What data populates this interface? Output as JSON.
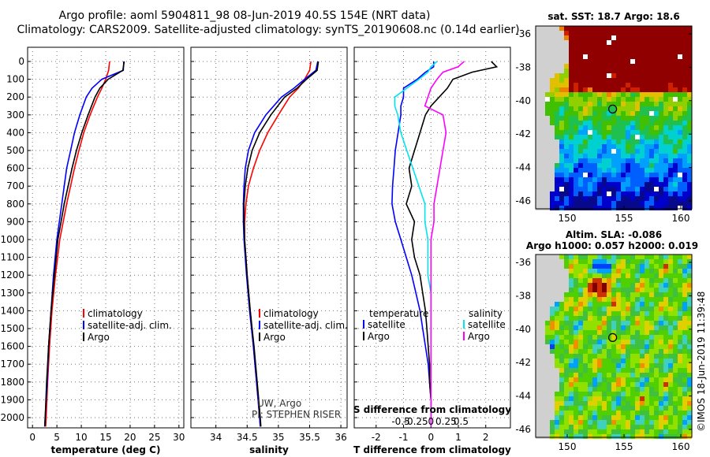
{
  "header": {
    "title_line1": "Argo profile: aoml 5904811_98 08-Jun-2019 40.5S 154E (NRT data)",
    "title_line2": "Climatology: CARS2009. Satellite-adjusted climatology: synTS_20190608.nc (0.14d earlier)"
  },
  "colors": {
    "climatology": "#ff0000",
    "satellite": "#0000ff",
    "argo": "#000000",
    "sat_salinity": "#00e5ee",
    "argo_salinity": "#ff00ff"
  },
  "depth_ticks": [
    "0",
    "100",
    "200",
    "300",
    "400",
    "500",
    "600",
    "700",
    "800",
    "900",
    "1000",
    "1100",
    "1200",
    "1300",
    "1400",
    "1500",
    "1600",
    "1700",
    "1800",
    "1900",
    "2000"
  ],
  "chart_data": [
    {
      "type": "line",
      "name": "temperature",
      "xlabel": "temperature (deg C)",
      "ylabel": "depth",
      "xlim": [
        -1,
        31
      ],
      "ylim": [
        2050,
        0
      ],
      "xticks": [
        "0",
        "5",
        "10",
        "15",
        "20",
        "25",
        "30"
      ],
      "y": [
        0,
        50,
        100,
        150,
        200,
        300,
        400,
        500,
        600,
        800,
        1000,
        1200,
        1400,
        1600,
        1800,
        2000,
        2050
      ],
      "series": [
        {
          "name": "climatology",
          "values": [
            15.8,
            15.6,
            15.0,
            14.2,
            13.3,
            11.8,
            10.5,
            9.5,
            8.6,
            7.0,
            5.6,
            4.7,
            4.0,
            3.5,
            3.1,
            2.8,
            2.7
          ]
        },
        {
          "name": "satellite-adj. clim.",
          "values": [
            18.7,
            18.6,
            14.2,
            12.2,
            11.0,
            9.7,
            8.6,
            7.8,
            7.0,
            6.0,
            5.0,
            4.3,
            3.8,
            3.3,
            3.0,
            2.6,
            2.5
          ]
        },
        {
          "name": "Argo",
          "values": [
            18.8,
            18.5,
            15.5,
            13.8,
            12.8,
            11.4,
            10.1,
            9.0,
            8.1,
            6.5,
            5.2,
            4.5,
            3.8,
            3.3,
            2.9,
            2.6,
            2.5
          ]
        }
      ],
      "legend": {
        "items": [
          "climatology",
          "satellite-adj. clim.",
          "Argo"
        ],
        "position": "lower-right"
      }
    },
    {
      "type": "line",
      "name": "salinity",
      "xlabel": "salinity",
      "xlim": [
        33.6,
        36.1
      ],
      "ylim": [
        2050,
        0
      ],
      "xticks": [
        "34",
        "34.5",
        "35",
        "35.5",
        "36"
      ],
      "y": [
        0,
        50,
        100,
        150,
        200,
        300,
        400,
        500,
        600,
        700,
        800,
        900,
        1000,
        1200,
        1400,
        1600,
        1800,
        2000,
        2050
      ],
      "series": [
        {
          "name": "climatology",
          "values": [
            35.52,
            35.5,
            35.42,
            35.32,
            35.18,
            35.0,
            34.83,
            34.7,
            34.6,
            34.52,
            34.48,
            34.46,
            34.46,
            34.5,
            34.55,
            34.6,
            34.65,
            34.7,
            34.71
          ]
        },
        {
          "name": "satellite-adj. clim.",
          "values": [
            35.63,
            35.6,
            35.42,
            35.25,
            35.05,
            34.8,
            34.62,
            34.52,
            34.47,
            34.45,
            34.44,
            34.44,
            34.45,
            34.49,
            34.54,
            34.6,
            34.65,
            34.7,
            34.71
          ]
        },
        {
          "name": "Argo",
          "values": [
            35.64,
            35.62,
            35.45,
            35.3,
            35.1,
            34.88,
            34.7,
            34.58,
            34.51,
            34.47,
            34.45,
            34.45,
            34.46,
            34.5,
            34.55,
            34.61,
            34.66,
            34.71,
            34.72
          ]
        }
      ],
      "legend": {
        "items": [
          "climatology",
          "satellite-adj. clim.",
          "Argo"
        ],
        "position": "lower-right"
      },
      "annotations": [
        "UW, Argo",
        "PI: STEPHEN RISER"
      ]
    },
    {
      "type": "line",
      "name": "difference",
      "xlabel": "T difference from climatology",
      "xlabel2": "S difference from climatology",
      "xlim": [
        -2.8,
        2.9
      ],
      "ylim": [
        2050,
        0
      ],
      "xticks": [
        "-2",
        "-1",
        "0",
        "1",
        "2"
      ],
      "xticks2": [
        "-0.5",
        "-0.25",
        "0",
        "0.25",
        "0.5"
      ],
      "y": [
        0,
        30,
        60,
        100,
        150,
        200,
        250,
        300,
        400,
        500,
        600,
        700,
        800,
        900,
        1000,
        1100,
        1200,
        1300,
        1400,
        1500,
        1600,
        1700,
        1800,
        1900,
        2000,
        2050
      ],
      "series": [
        {
          "name": "temperature satellite",
          "values": [
            0.1,
            0.1,
            -0.2,
            -0.5,
            -1.0,
            -1.0,
            -1.1,
            -1.1,
            -1.2,
            -1.3,
            -1.35,
            -1.4,
            -1.42,
            -1.3,
            -1.1,
            -0.9,
            -0.7,
            -0.55,
            -0.4,
            -0.3,
            -0.2,
            -0.1,
            -0.05,
            0.0,
            0.0,
            0.0
          ]
        },
        {
          "name": "temperature Argo",
          "values": [
            2.2,
            2.4,
            1.5,
            0.8,
            0.6,
            0.3,
            0.0,
            -0.2,
            -0.4,
            -0.6,
            -0.8,
            -0.7,
            -0.9,
            -0.6,
            -0.7,
            -0.6,
            -0.4,
            -0.3,
            -0.2,
            -0.15,
            -0.1,
            -0.05,
            -0.05,
            0.0,
            0.0,
            0.0
          ]
        },
        {
          "name": "salinity satellite",
          "values": [
            0.1,
            0.0,
            -0.05,
            -0.2,
            -0.4,
            -0.6,
            -0.6,
            -0.55,
            -0.5,
            -0.4,
            -0.3,
            -0.2,
            -0.1,
            -0.1,
            -0.05,
            -0.05,
            -0.05,
            0.0,
            0.0,
            0.0,
            0.0,
            0.0,
            0.0,
            0.0,
            0.0,
            0.0
          ]
        },
        {
          "name": "salinity Argo",
          "values": [
            0.55,
            0.45,
            0.2,
            0.1,
            0.0,
            -0.05,
            -0.1,
            0.2,
            0.25,
            0.2,
            0.15,
            0.1,
            0.05,
            0.05,
            0.0,
            0.0,
            0.0,
            0.0,
            0.0,
            0.0,
            0.0,
            0.0,
            0.0,
            0.0,
            0.0,
            0.0
          ]
        }
      ],
      "legend": {
        "temperature_title": "temperature",
        "salinity_title": "salinity",
        "temperature_items": [
          "satellite",
          "Argo"
        ],
        "salinity_items": [
          "satellite",
          "Argo"
        ],
        "position": "lower"
      }
    },
    {
      "type": "heatmap",
      "name": "sst-map",
      "title": "sat. SST: 18.7 Argo: 18.6",
      "xticks": [
        "150",
        "155",
        "160"
      ],
      "yticks": [
        "-36",
        "-38",
        "-40",
        "-42",
        "-44",
        "-46"
      ],
      "marker": {
        "lon": 154,
        "lat": -40.5
      }
    },
    {
      "type": "heatmap",
      "name": "sla-map",
      "title_line1": "Altim. SLA: -0.086",
      "title_line2": "Argo h1000: 0.057 h2000: 0.019",
      "xticks": [
        "150",
        "155",
        "160"
      ],
      "yticks": [
        "-36",
        "-38",
        "-40",
        "-42",
        "-44",
        "-46"
      ],
      "marker": {
        "lon": 154,
        "lat": -40.5
      }
    }
  ],
  "watermark": "©IMOS 18-Jun-2019 11:39:48"
}
